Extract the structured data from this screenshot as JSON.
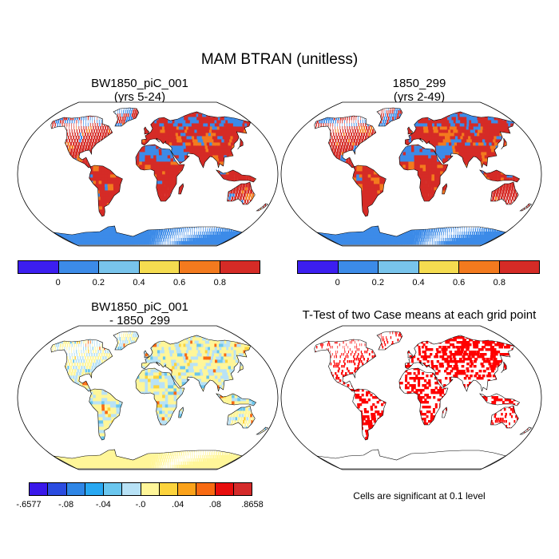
{
  "figure": {
    "title": "MAM BTRAN (unitless)"
  },
  "panels": [
    {
      "id": "top-left",
      "title_line1": "BW1850_piC_001",
      "title_line2": "(yrs 5-24)"
    },
    {
      "id": "top-right",
      "title_line1": "1850_299",
      "title_line2": "(yrs 2-49)"
    },
    {
      "id": "bottom-left",
      "title_line1": "BW1850_piC_001",
      "title_line2": "- 1850_299"
    },
    {
      "id": "bottom-right",
      "title_line1": "T-Test of two Case means at each grid point",
      "title_line2": ""
    }
  ],
  "colorbars": {
    "main": {
      "colors": [
        "#3c1ef0",
        "#3c8be8",
        "#78c4ec",
        "#f5dc50",
        "#f37a1e",
        "#d52b26"
      ],
      "labels": [
        "0",
        "0.2",
        "0.4",
        "0.6",
        "0.8"
      ]
    },
    "diff": {
      "colors": [
        "#3a18ea",
        "#2b4ce0",
        "#2f86e6",
        "#28a8f2",
        "#6ac6ee",
        "#b8e2f6",
        "#fff699",
        "#fcd33c",
        "#fba21a",
        "#f86a12",
        "#e80d0d",
        "#d42a2a"
      ],
      "labels": [
        "-.6577",
        "-.08",
        "-.04",
        "-.0",
        ".04",
        ".08",
        ".8658"
      ]
    }
  },
  "significance_note": "Cells are significant at 0.1 level",
  "map_colors": {
    "ocean": "#ffffff",
    "land_dry": "#d52b26",
    "land_mid": "#f37a1e",
    "land_wet": "#3c8be8",
    "land_neutral": "#f5dc50",
    "diff_neutral": "#fff699",
    "diff_neg": "#b8e2f6",
    "diff_pos": "#f86a12",
    "significant": "#ff0000",
    "coast": "#000000"
  }
}
